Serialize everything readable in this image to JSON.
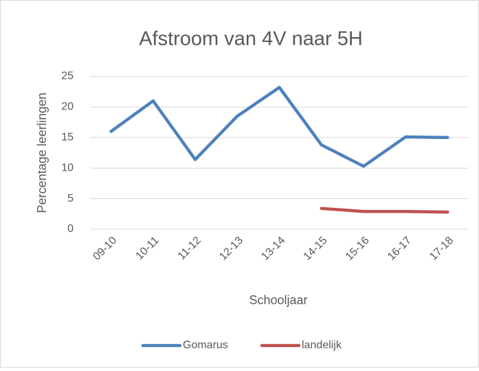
{
  "chart_data": {
    "type": "line",
    "title": "Afstroom van 4V naar 5H",
    "x_label": "Schooljaar",
    "y_label": "Percentage leerlingen",
    "categories": [
      "09-10",
      "10-11",
      "11-12",
      "12-13",
      "13-14",
      "14-15",
      "15-16",
      "16-17",
      "17-18"
    ],
    "series": [
      {
        "name": "Gomarus",
        "color": "#4e81bd",
        "values": [
          16,
          21,
          11.4,
          18.5,
          23.2,
          13.8,
          10.3,
          15.1,
          15
        ]
      },
      {
        "name": "landelijk",
        "color": "#c0504d",
        "values": [
          null,
          null,
          null,
          null,
          null,
          3.4,
          2.9,
          2.9,
          2.8
        ]
      }
    ],
    "ylim": [
      0,
      25
    ],
    "yticks": [
      0,
      5,
      10,
      15,
      20,
      25
    ],
    "grid": true,
    "legend": "bottom"
  }
}
